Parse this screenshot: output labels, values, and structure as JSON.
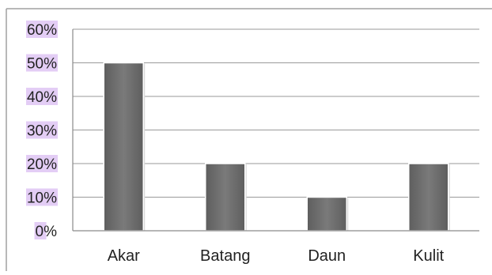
{
  "chart_data": {
    "type": "bar",
    "categories": [
      "Akar",
      "Batang",
      "Daun",
      "Kulit"
    ],
    "values": [
      50,
      20,
      10,
      20
    ],
    "y_tick_labels": [
      "0%",
      "10%",
      "20%",
      "30%",
      "40%",
      "50%",
      "60%"
    ],
    "ylim": [
      0,
      60
    ],
    "y_unit": "%",
    "grid": true,
    "legend": "none",
    "bar_color": "#6e6e6e",
    "tick_highlight_color": "#e3cdf5"
  }
}
